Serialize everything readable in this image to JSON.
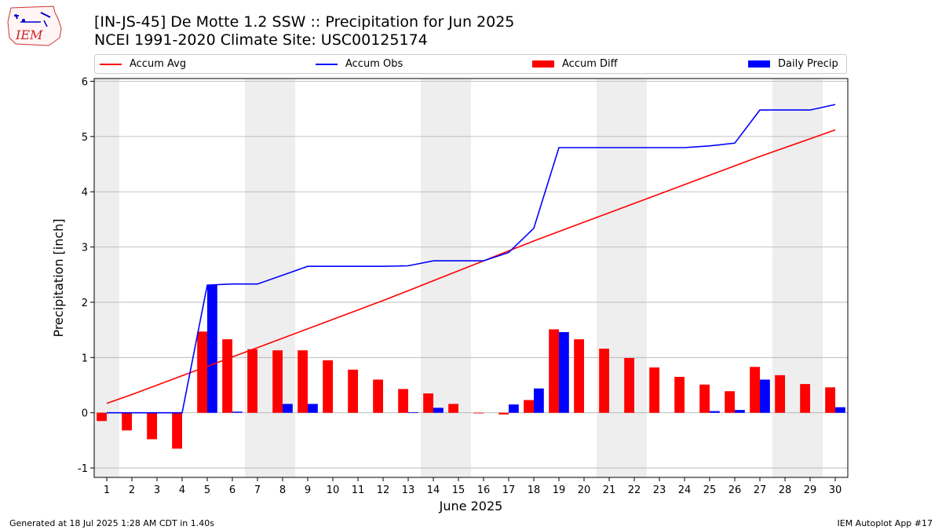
{
  "title_line1": "[IN-JS-45] De Motte 1.2 SSW :: Precipitation for Jun 2025",
  "title_line2": "NCEI 1991-2020 Climate Site: USC00125174",
  "logo_text": "IEM",
  "footer_left": "Generated at 18 Jul 2025 1:28 AM CDT in 1.40s",
  "footer_right": "IEM Autoplot App #17",
  "colors": {
    "accum_avg": "#ff0000",
    "accum_obs": "#0000ff",
    "accum_diff": "#ff0000",
    "daily_precip": "#0000ff",
    "weekend_shade": "#eeeeee",
    "grid": "#b0b0b0"
  },
  "legend": [
    {
      "label": "Accum Avg",
      "kind": "line",
      "color": "#ff0000"
    },
    {
      "label": "Accum Obs",
      "kind": "line",
      "color": "#0000ff"
    },
    {
      "label": "Accum Diff",
      "kind": "patch",
      "color": "#ff0000"
    },
    {
      "label": "Daily Precip",
      "kind": "patch",
      "color": "#0000ff"
    }
  ],
  "chart_data": {
    "type": "bar",
    "xlabel": "June 2025",
    "ylabel": "Precipitation [inch]",
    "ylim": [
      -1.17,
      6.05
    ],
    "yticks": [
      -1,
      0,
      1,
      2,
      3,
      4,
      5,
      6
    ],
    "grid": "horizontal",
    "legend_position": "top",
    "days": [
      1,
      2,
      3,
      4,
      5,
      6,
      7,
      8,
      9,
      10,
      11,
      12,
      13,
      14,
      15,
      16,
      17,
      18,
      19,
      20,
      21,
      22,
      23,
      24,
      25,
      26,
      27,
      28,
      29,
      30
    ],
    "weekend_days": [
      1,
      7,
      8,
      14,
      15,
      21,
      22,
      28,
      29
    ],
    "series": [
      {
        "name": "Accum Avg",
        "type": "line",
        "values": [
          0.17,
          0.33,
          0.5,
          0.67,
          0.84,
          1.01,
          1.18,
          1.35,
          1.52,
          1.69,
          1.86,
          2.03,
          2.21,
          2.39,
          2.57,
          2.75,
          2.93,
          3.11,
          3.28,
          3.45,
          3.62,
          3.79,
          3.96,
          4.13,
          4.3,
          4.47,
          4.64,
          4.8,
          4.96,
          5.12
        ]
      },
      {
        "name": "Accum Obs",
        "type": "line",
        "values": [
          0.0,
          0.0,
          0.0,
          0.0,
          2.31,
          2.33,
          2.33,
          2.49,
          2.65,
          2.65,
          2.65,
          2.65,
          2.66,
          2.75,
          2.75,
          2.75,
          2.9,
          3.34,
          4.8,
          4.8,
          4.8,
          4.8,
          4.8,
          4.8,
          4.83,
          4.88,
          5.48,
          5.48,
          5.48,
          5.58
        ]
      },
      {
        "name": "Accum Diff",
        "type": "bar",
        "values": [
          -0.15,
          -0.32,
          -0.48,
          -0.65,
          1.47,
          1.33,
          1.15,
          1.13,
          1.13,
          0.95,
          0.78,
          0.6,
          0.43,
          0.35,
          0.16,
          -0.01,
          -0.03,
          0.23,
          1.51,
          1.33,
          1.16,
          0.99,
          0.82,
          0.65,
          0.51,
          0.39,
          0.83,
          0.68,
          0.52,
          0.46
        ]
      },
      {
        "name": "Daily Precip",
        "type": "bar",
        "values": [
          0,
          0,
          0,
          0,
          2.31,
          0.02,
          0,
          0.16,
          0.16,
          0,
          0,
          0,
          0.01,
          0.09,
          0,
          0,
          0.15,
          0.44,
          1.46,
          0,
          0,
          0,
          0,
          0,
          0.03,
          0.05,
          0.6,
          0,
          0,
          0.1
        ]
      }
    ]
  }
}
